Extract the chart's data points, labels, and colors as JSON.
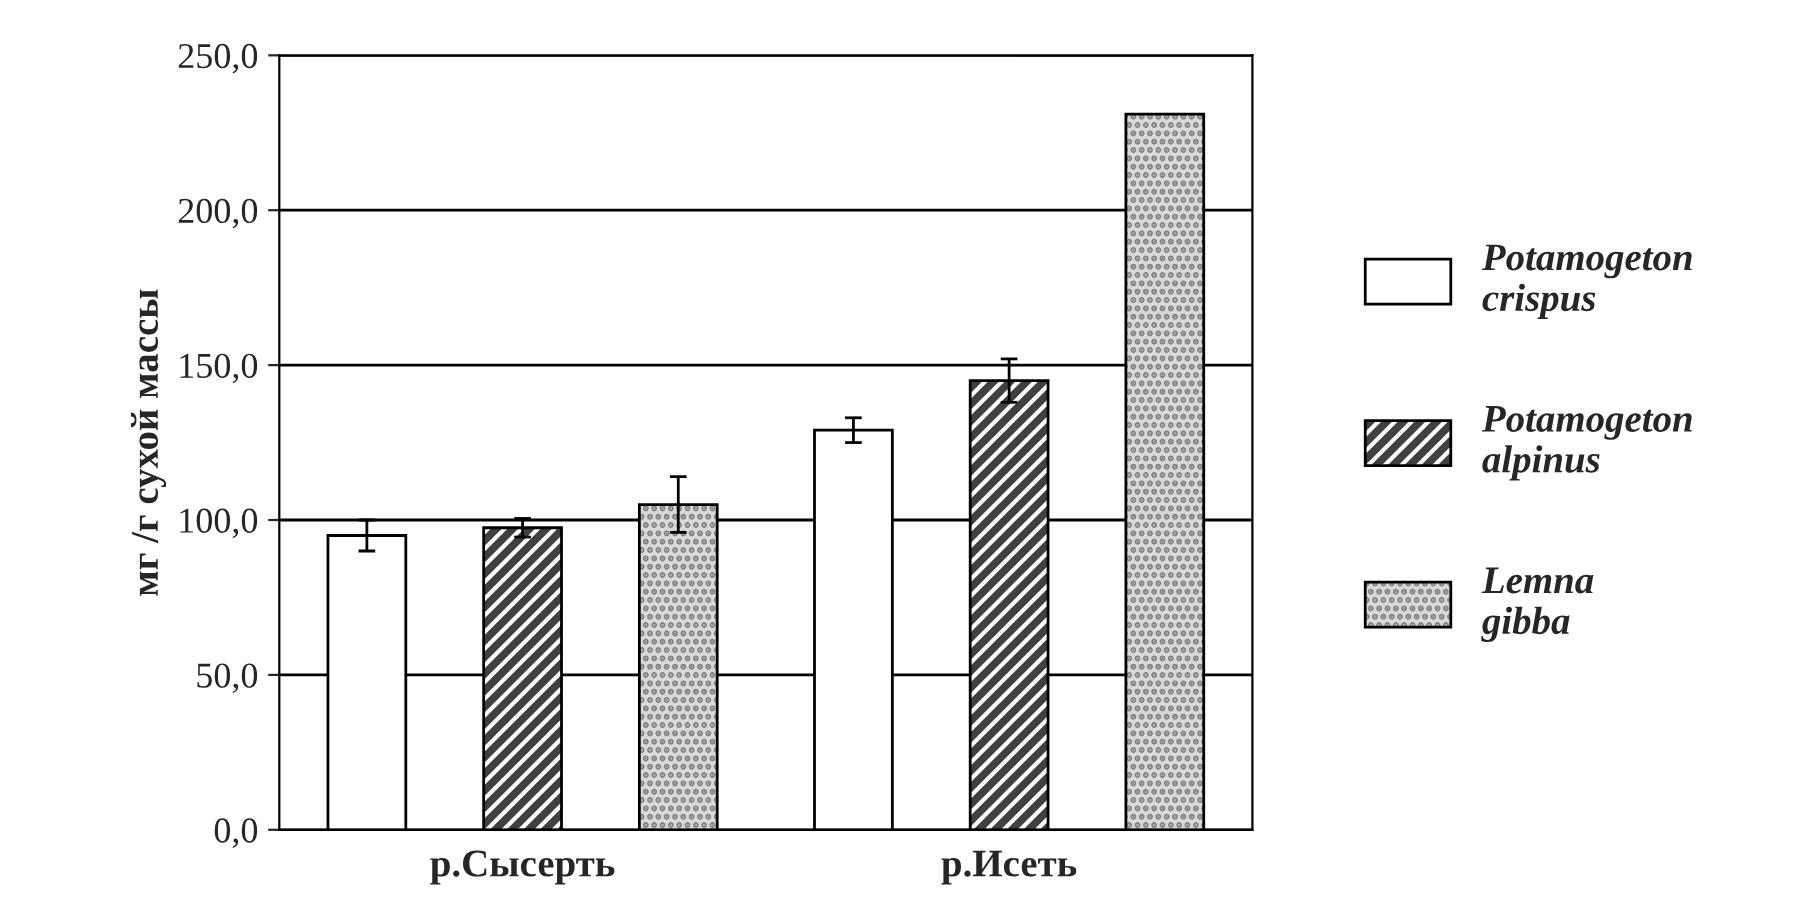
{
  "chart_data": {
    "type": "bar",
    "ylabel": "мг /г сухой массы",
    "categories": [
      "р.Сысерть",
      "р.Исеть"
    ],
    "series": [
      {
        "name": "Potamogeton crispus",
        "color": "#ffffff",
        "values": [
          95,
          129
        ],
        "errors": [
          5,
          4
        ]
      },
      {
        "name": "Potamogeton alpinus",
        "color": "#404040",
        "values": [
          97.5,
          145
        ],
        "errors": [
          3,
          7
        ]
      },
      {
        "name": "Lemna gibba",
        "color": "#d9d9d9",
        "values": [
          105,
          231
        ],
        "errors": [
          9,
          null
        ]
      }
    ],
    "ylim": [
      0,
      250
    ],
    "yticks": [
      {
        "value": 0,
        "label": "0,0"
      },
      {
        "value": 50,
        "label": "50,0"
      },
      {
        "value": 100,
        "label": "100,0"
      },
      {
        "value": 150,
        "label": "150,0"
      },
      {
        "value": 200,
        "label": "200,0"
      },
      {
        "value": 250,
        "label": "250,0"
      }
    ],
    "grid": "y",
    "legend": "right"
  }
}
